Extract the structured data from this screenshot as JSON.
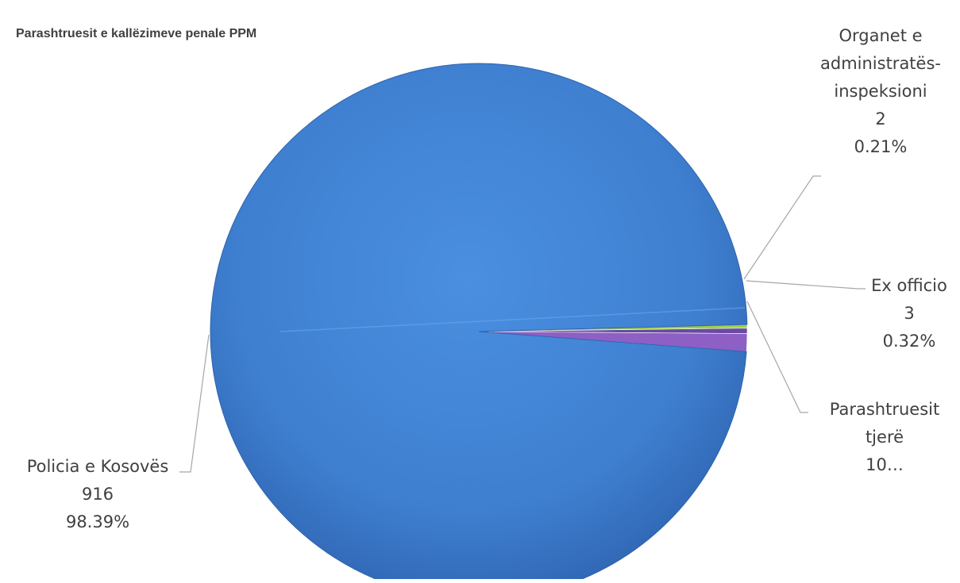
{
  "chart_data": {
    "type": "pie",
    "title": "Parashtruesit e kallëzimeve penale PPM",
    "slices": [
      {
        "name": "Policia e Kosovës",
        "value_text": "916",
        "percent_text": "98.39%",
        "value": 916,
        "percent": 98.39,
        "color": "#3f7fd0"
      },
      {
        "name": "Parashtruesit tjerë",
        "value_text": "10…",
        "percent_text": "",
        "value": 10,
        "percent": 1.07,
        "color": "#8e5fc4"
      },
      {
        "name": "Ex officio",
        "value_text": "3",
        "percent_text": "0.32%",
        "value": 3,
        "percent": 0.32,
        "color": "#6a4aa3"
      },
      {
        "name": "Organet e administratës-inspeksioni",
        "value_text": "2",
        "percent_text": "0.21%",
        "value": 2,
        "percent": 0.21,
        "color": "#9fd045"
      }
    ],
    "labels": [
      {
        "lines": [
          "Organet e",
          "administratës-",
          "inspeksioni",
          "2",
          "0.21%"
        ]
      },
      {
        "lines": [
          "Ex officio",
          "3",
          "0.32%"
        ]
      },
      {
        "lines": [
          "Parashtruesit",
          "tjerë",
          "10…"
        ]
      },
      {
        "lines": [
          "Policia e Kosovës",
          "916",
          "98.39%"
        ]
      }
    ],
    "legend": "none"
  }
}
